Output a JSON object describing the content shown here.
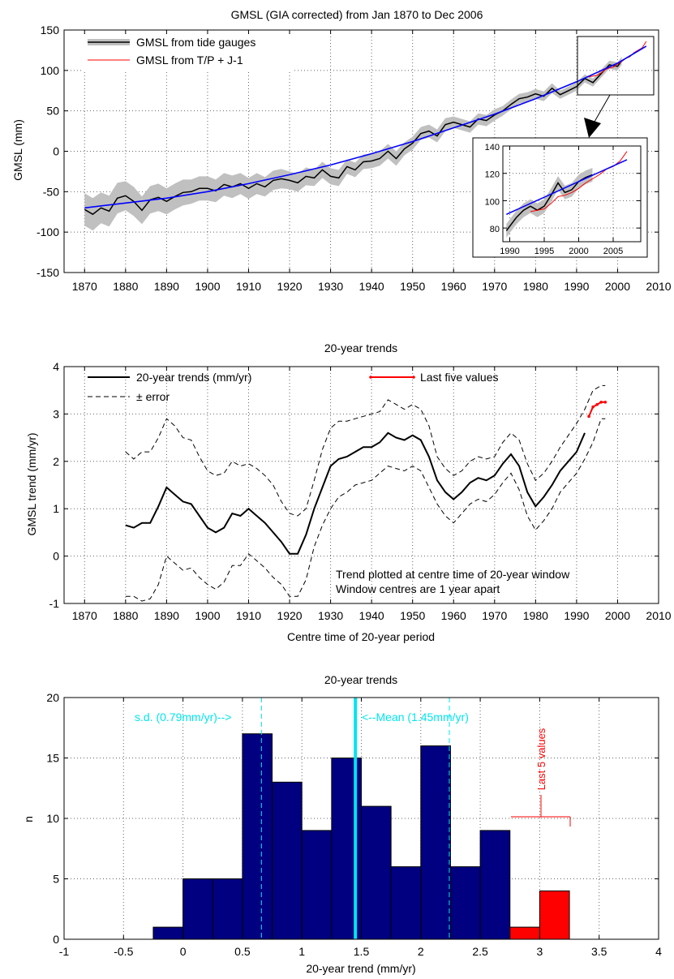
{
  "figure": {
    "background": "#ffffff"
  },
  "chart_data": [
    {
      "type": "line",
      "title": "GMSL (GIA corrected) from Jan 1870 to Dec 2006",
      "xlabel": "",
      "ylabel": "GMSL (mm)",
      "xlim": [
        1865,
        2010
      ],
      "ylim": [
        -150,
        150
      ],
      "xticks": [
        1870,
        1880,
        1890,
        1900,
        1910,
        1920,
        1930,
        1940,
        1950,
        1960,
        1970,
        1980,
        1990,
        2000,
        2010
      ],
      "yticks": [
        -150,
        -100,
        -50,
        0,
        50,
        100,
        150
      ],
      "grid": true,
      "legend_position": "top-left",
      "colors": {
        "tide_line": "#000000",
        "tide_band": "#c0c0c0",
        "tp_line": "#ff0000",
        "fit_line": "#0000ff"
      },
      "series": [
        {
          "name": "GMSL from tide gauges",
          "style": "black line with grey error band",
          "x": [
            1870,
            1872,
            1874,
            1876,
            1878,
            1880,
            1882,
            1884,
            1886,
            1888,
            1890,
            1892,
            1894,
            1896,
            1898,
            1900,
            1902,
            1904,
            1906,
            1908,
            1910,
            1912,
            1914,
            1916,
            1918,
            1920,
            1922,
            1924,
            1926,
            1928,
            1930,
            1932,
            1934,
            1936,
            1938,
            1940,
            1942,
            1944,
            1946,
            1948,
            1950,
            1952,
            1954,
            1956,
            1958,
            1960,
            1962,
            1964,
            1966,
            1968,
            1970,
            1972,
            1974,
            1976,
            1978,
            1980,
            1982,
            1984,
            1986,
            1988,
            1990,
            1992,
            1994,
            1996,
            1998,
            2000,
            2001
          ],
          "values": [
            -72,
            -78,
            -70,
            -74,
            -58,
            -55,
            -62,
            -73,
            -60,
            -57,
            -62,
            -56,
            -51,
            -50,
            -46,
            -46,
            -49,
            -41,
            -44,
            -40,
            -46,
            -40,
            -44,
            -36,
            -34,
            -36,
            -39,
            -31,
            -33,
            -23,
            -31,
            -33,
            -19,
            -23,
            -13,
            -12,
            -9,
            0,
            -9,
            3,
            10,
            22,
            25,
            19,
            33,
            36,
            33,
            30,
            40,
            38,
            45,
            50,
            58,
            65,
            67,
            71,
            68,
            78,
            70,
            75,
            80,
            90,
            85,
            96,
            107,
            105,
            112
          ],
          "error": [
            20,
            20,
            19,
            19,
            19,
            18,
            18,
            17,
            17,
            17,
            16,
            16,
            16,
            15,
            15,
            15,
            14,
            14,
            14,
            13,
            13,
            13,
            12,
            12,
            12,
            11,
            11,
            11,
            10,
            10,
            10,
            10,
            9,
            9,
            9,
            9,
            9,
            9,
            9,
            8,
            8,
            8,
            8,
            8,
            8,
            7,
            7,
            7,
            7,
            7,
            7,
            6,
            6,
            6,
            6,
            6,
            6,
            6,
            5,
            5,
            5,
            5,
            5,
            5,
            5,
            5,
            5
          ]
        },
        {
          "name": "GMSL from T/P + J-1",
          "style": "red line",
          "x": [
            1993,
            1994,
            1995,
            1996,
            1997,
            1998,
            1999,
            2000,
            2001,
            2002,
            2003,
            2004,
            2005,
            2006,
            2007
          ],
          "values": [
            92,
            93,
            94,
            97,
            101,
            103,
            104,
            108,
            111,
            115,
            117,
            122,
            125,
            128,
            136
          ]
        },
        {
          "name": "",
          "style": "blue quadratic fit",
          "x": [
            1870,
            1880,
            1890,
            1900,
            1910,
            1920,
            1930,
            1940,
            1950,
            1960,
            1970,
            1980,
            1990,
            2000,
            2007
          ],
          "values": [
            -70,
            -64,
            -58,
            -50,
            -40,
            -29,
            -17,
            -3,
            12,
            29,
            46,
            65,
            86,
            109,
            130
          ]
        }
      ],
      "inset": {
        "xlim": [
          1989,
          2009
        ],
        "ylim": [
          70,
          140
        ],
        "xticks": [
          1990,
          1995,
          2000,
          2005
        ],
        "yticks": [
          80,
          100,
          120,
          140
        ],
        "tide_x": [
          1989.5,
          1991,
          1992,
          1993,
          1994,
          1995,
          1996,
          1997,
          1998,
          1999,
          2000,
          2001,
          2002
        ],
        "tide_values": [
          78,
          88,
          93,
          96,
          93,
          96,
          104,
          113,
          106,
          108,
          114,
          117,
          119
        ],
        "tp_x": [
          1993,
          1994,
          1995,
          1996,
          1997,
          1998,
          1999,
          2000,
          2001,
          2002,
          2003,
          2004,
          2005,
          2006,
          2007
        ],
        "tp_values": [
          92,
          93,
          94,
          98,
          103,
          104,
          106,
          109,
          113,
          116,
          119,
          123,
          125,
          129,
          136
        ],
        "fit_x": [
          1989.5,
          2007
        ],
        "fit_values": [
          90,
          130
        ]
      }
    },
    {
      "type": "line",
      "title": "20-year trends",
      "xlabel": "Centre time of 20-year period",
      "ylabel": "GMSL trend (mm/yr)",
      "xlim": [
        1865,
        2010
      ],
      "ylim": [
        -1,
        4
      ],
      "xticks": [
        1870,
        1880,
        1890,
        1900,
        1910,
        1920,
        1930,
        1940,
        1950,
        1960,
        1970,
        1980,
        1990,
        2000,
        2010
      ],
      "yticks": [
        -1,
        0,
        1,
        2,
        3,
        4
      ],
      "grid": true,
      "legend_position": "top",
      "colors": {
        "trend": "#000000",
        "last5": "#ff0000"
      },
      "series": [
        {
          "name": "20-year trends (mm/yr)",
          "x": [
            1880,
            1882,
            1884,
            1886,
            1888,
            1890,
            1892,
            1894,
            1896,
            1898,
            1900,
            1902,
            1904,
            1906,
            1908,
            1910,
            1912,
            1914,
            1916,
            1918,
            1920,
            1922,
            1924,
            1926,
            1928,
            1930,
            1932,
            1934,
            1936,
            1938,
            1940,
            1942,
            1944,
            1946,
            1948,
            1950,
            1952,
            1954,
            1956,
            1958,
            1960,
            1962,
            1964,
            1966,
            1968,
            1970,
            1972,
            1974,
            1976,
            1978,
            1980,
            1982,
            1984,
            1986,
            1988,
            1990,
            1992
          ],
          "values": [
            0.65,
            0.6,
            0.7,
            0.7,
            1.05,
            1.45,
            1.3,
            1.15,
            1.1,
            0.85,
            0.6,
            0.5,
            0.6,
            0.9,
            0.85,
            1.0,
            0.85,
            0.7,
            0.5,
            0.3,
            0.05,
            0.05,
            0.45,
            1.0,
            1.45,
            1.9,
            2.05,
            2.1,
            2.2,
            2.3,
            2.3,
            2.4,
            2.6,
            2.5,
            2.45,
            2.55,
            2.45,
            2.1,
            1.6,
            1.35,
            1.2,
            1.35,
            1.55,
            1.65,
            1.6,
            1.7,
            1.95,
            2.15,
            1.9,
            1.35,
            1.05,
            1.25,
            1.5,
            1.8,
            2.0,
            2.2,
            2.6
          ]
        },
        {
          "name": "± error",
          "style": "dashed",
          "x": [
            1880,
            1882,
            1884,
            1886,
            1888,
            1890,
            1892,
            1894,
            1896,
            1898,
            1900,
            1902,
            1904,
            1906,
            1908,
            1910,
            1912,
            1914,
            1916,
            1918,
            1920,
            1922,
            1924,
            1926,
            1928,
            1930,
            1932,
            1934,
            1936,
            1938,
            1940,
            1942,
            1944,
            1946,
            1948,
            1950,
            1952,
            1954,
            1956,
            1958,
            1960,
            1962,
            1964,
            1966,
            1968,
            1970,
            1972,
            1974,
            1976,
            1978,
            1980,
            1982,
            1984,
            1986,
            1988,
            1990,
            1992,
            1994,
            1996,
            1997
          ],
          "upper": [
            2.2,
            2.05,
            2.2,
            2.2,
            2.5,
            2.9,
            2.75,
            2.5,
            2.45,
            2.1,
            1.8,
            1.7,
            1.75,
            2.0,
            1.9,
            1.95,
            1.85,
            1.7,
            1.5,
            1.15,
            0.9,
            0.85,
            1.0,
            1.6,
            2.25,
            2.7,
            2.85,
            2.85,
            2.9,
            2.95,
            3.0,
            3.05,
            3.3,
            3.2,
            3.1,
            3.2,
            3.1,
            2.75,
            2.1,
            1.85,
            1.7,
            1.8,
            2.0,
            2.1,
            2.05,
            2.1,
            2.4,
            2.6,
            2.45,
            1.95,
            1.6,
            1.75,
            2.0,
            2.3,
            2.55,
            2.8,
            3.1,
            3.5,
            3.6,
            3.6
          ],
          "lower": [
            -0.85,
            -0.85,
            -0.95,
            -0.9,
            -0.6,
            0.0,
            -0.15,
            -0.3,
            -0.25,
            -0.45,
            -0.6,
            -0.7,
            -0.55,
            -0.2,
            -0.2,
            0.05,
            -0.1,
            -0.25,
            -0.45,
            -0.6,
            -0.85,
            -0.85,
            -0.5,
            0.2,
            0.65,
            1.0,
            1.25,
            1.35,
            1.5,
            1.55,
            1.6,
            1.75,
            1.9,
            1.85,
            1.8,
            1.9,
            1.8,
            1.45,
            1.1,
            0.85,
            0.7,
            0.9,
            1.1,
            1.2,
            1.15,
            1.3,
            1.55,
            1.75,
            1.4,
            0.85,
            0.55,
            0.75,
            1.0,
            1.35,
            1.55,
            1.75,
            2.05,
            2.4,
            2.9,
            2.9
          ]
        },
        {
          "name": "Last five values",
          "x": [
            1993,
            1994,
            1995,
            1996,
            1997
          ],
          "values": [
            2.95,
            3.15,
            3.2,
            3.25,
            3.25
          ]
        }
      ],
      "annotations": [
        "Trend plotted at centre time of 20-year window",
        "Window centres are 1 year apart"
      ]
    },
    {
      "type": "bar",
      "title": "20-year trends",
      "xlabel": "20-year trend (mm/yr)",
      "ylabel": "n",
      "xlim": [
        -1,
        4
      ],
      "ylim": [
        0,
        20
      ],
      "xticks": [
        -1,
        -0.5,
        0,
        0.5,
        1,
        1.5,
        2,
        2.5,
        3,
        3.5,
        4
      ],
      "yticks": [
        0,
        5,
        10,
        15,
        20
      ],
      "grid": true,
      "bin_width": 0.25,
      "colors": {
        "bar": "#000080",
        "last5": "#ff0000",
        "lines": "#00e5ee"
      },
      "series": [
        {
          "name": "",
          "bin_centres": [
            -0.125,
            0.125,
            0.375,
            0.625,
            0.875,
            1.125,
            1.375,
            1.625,
            1.875,
            2.125,
            2.375,
            2.625
          ],
          "values": [
            1,
            5,
            5,
            17,
            13,
            9,
            15,
            11,
            6,
            16,
            6,
            9
          ]
        },
        {
          "name": "Last 5 values",
          "bin_centres": [
            2.875,
            3.125
          ],
          "values": [
            1,
            4
          ]
        }
      ],
      "mean_line": {
        "x": 1.45,
        "label": "<--Mean (1.45mm/yr)"
      },
      "sd_lines": {
        "x": [
          0.66,
          2.24
        ],
        "label": "s.d. (0.79mm/yr)-->"
      },
      "last5_label": "Last 5 values"
    }
  ]
}
